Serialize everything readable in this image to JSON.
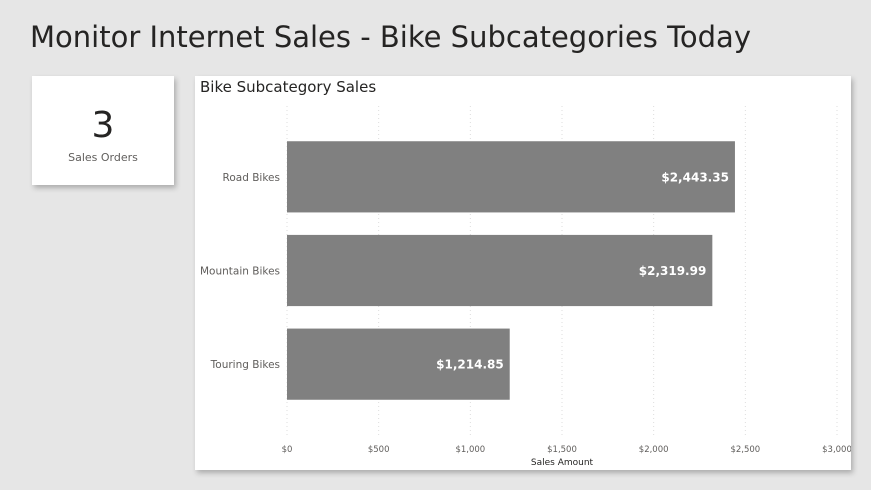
{
  "page": {
    "title": "Monitor Internet Sales - Bike Subcategories Today"
  },
  "card": {
    "value": "3",
    "label": "Sales Orders"
  },
  "chart_data": {
    "type": "bar",
    "orientation": "horizontal",
    "title": "Bike Subcategory Sales",
    "xlabel": "Sales Amount",
    "ylabel": "",
    "categories": [
      "Road Bikes",
      "Mountain Bikes",
      "Touring Bikes"
    ],
    "values": [
      2443.35,
      2319.99,
      1214.85
    ],
    "data_labels": [
      "$2,443.35",
      "$2,319.99",
      "$1,214.85"
    ],
    "xlim": [
      0,
      3000
    ],
    "x_ticks": [
      0,
      500,
      1000,
      1500,
      2000,
      2500,
      3000
    ],
    "x_tick_labels": [
      "$0",
      "$500",
      "$1,000",
      "$1,500",
      "$2,000",
      "$2,500",
      "$3,000"
    ],
    "bar_color": "#808080",
    "grid": "vertical-dotted",
    "legend": "none"
  }
}
